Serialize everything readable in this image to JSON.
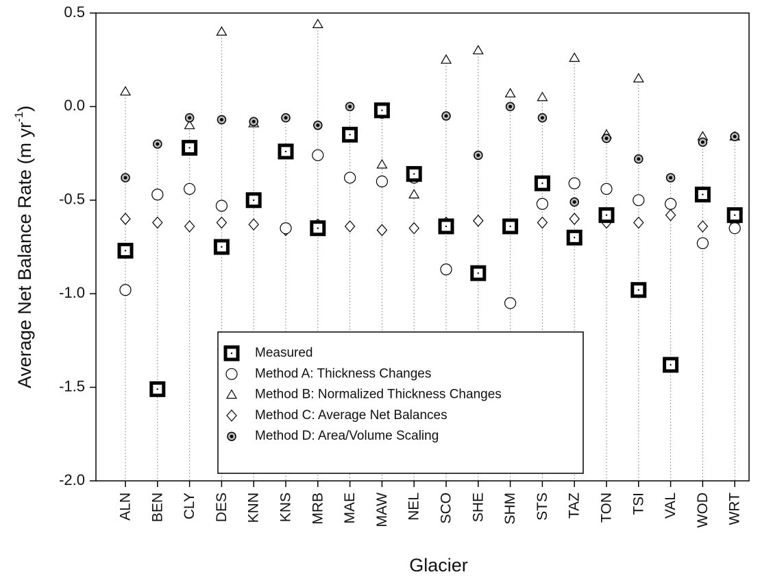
{
  "chart_data": {
    "type": "scatter",
    "y_label": "Average Net Balance Rate (m yr",
    "y_label_sup": "-1",
    "y_label_end": ")",
    "x_label": "Glacier",
    "categories": [
      "ALN",
      "BEN",
      "CLY",
      "DES",
      "KNN",
      "KNS",
      "MRB",
      "MAE",
      "MAW",
      "NEL",
      "SCO",
      "SHE",
      "SHM",
      "STS",
      "TAZ",
      "TON",
      "TSI",
      "VAL",
      "WOD",
      "WRT"
    ],
    "ylim": [
      -2.0,
      0.5
    ],
    "yticks": [
      0.5,
      {
        "value": 0,
        "label": "0.0"
      },
      -0.5,
      {
        "value": -1,
        "label": "-1.0"
      },
      -1.5,
      {
        "value": -2,
        "label": "-2.0"
      }
    ],
    "series": [
      {
        "name": "Measured",
        "marker": "square",
        "color": "#000000",
        "values": [
          -0.77,
          -1.51,
          -0.22,
          -0.75,
          -0.5,
          -0.24,
          -0.65,
          -0.15,
          -0.02,
          -0.36,
          -0.64,
          -0.89,
          -0.64,
          -0.41,
          -0.7,
          -0.58,
          -0.98,
          -1.38,
          -0.47,
          -0.58
        ]
      },
      {
        "name": "Method A: Thickness Changes",
        "marker": "circle",
        "color": "#000000",
        "values": [
          -0.98,
          -0.47,
          -0.44,
          -0.53,
          -0.49,
          -0.65,
          -0.26,
          -0.38,
          -0.4,
          -0.38,
          -0.87,
          -0.89,
          -1.05,
          -0.52,
          -0.41,
          -0.44,
          -0.5,
          -0.52,
          -0.73,
          -0.65
        ]
      },
      {
        "name": "Method B: Normalized Thickness Changes",
        "marker": "triangle",
        "color": "#000000",
        "values": [
          0.08,
          null,
          -0.1,
          0.4,
          -0.09,
          -0.23,
          0.44,
          -0.15,
          -0.31,
          -0.47,
          0.25,
          0.3,
          0.07,
          0.05,
          0.26,
          -0.15,
          0.15,
          null,
          -0.16,
          -0.16
        ]
      },
      {
        "name": "Method C: Average Net Balances",
        "marker": "diamond",
        "color": "#000000",
        "values": [
          -0.6,
          -0.62,
          -0.64,
          -0.62,
          -0.63,
          -0.66,
          -0.63,
          -0.64,
          -0.66,
          -0.65,
          -0.62,
          -0.61,
          -0.64,
          -0.62,
          -0.6,
          -0.62,
          -0.62,
          -0.58,
          -0.64,
          -0.62
        ]
      },
      {
        "name": "Method D: Area/Volume Scaling",
        "marker": "star",
        "color": "#000000",
        "values": [
          -0.38,
          -0.2,
          -0.06,
          -0.07,
          -0.08,
          -0.06,
          -0.1,
          0.0,
          -0.04,
          -0.37,
          -0.05,
          -0.26,
          0.0,
          -0.06,
          -0.51,
          -0.17,
          -0.28,
          -0.38,
          -0.19,
          -0.16
        ]
      }
    ]
  }
}
